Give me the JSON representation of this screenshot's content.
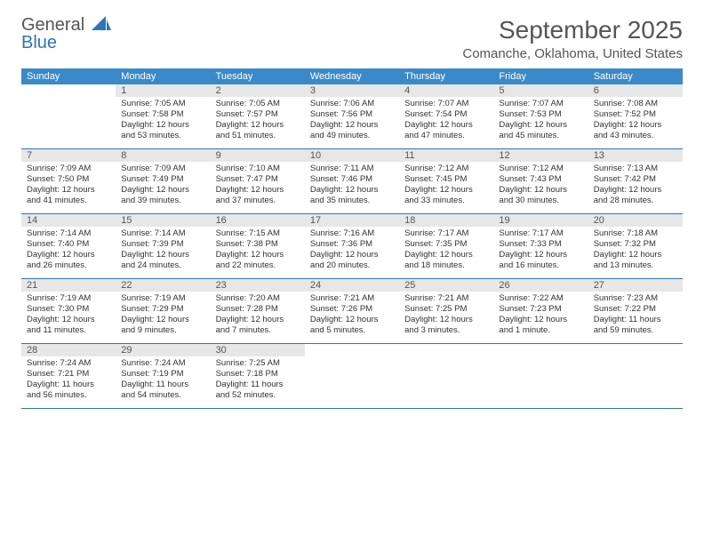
{
  "logo": {
    "word1": "General",
    "word2": "Blue"
  },
  "header": {
    "month_title": "September 2025",
    "location": "Comanche, Oklahoma, United States"
  },
  "colors": {
    "header_bg": "#3a8ac9",
    "header_fg": "#ffffff",
    "daynum_bg": "#e7e7e7",
    "row_border": "#2e75b6",
    "logo_blue": "#2e75b6"
  },
  "weekdays": [
    "Sunday",
    "Monday",
    "Tuesday",
    "Wednesday",
    "Thursday",
    "Friday",
    "Saturday"
  ],
  "weeks": [
    [
      null,
      {
        "n": "1",
        "sunrise": "Sunrise: 7:05 AM",
        "sunset": "Sunset: 7:58 PM",
        "daylight": "Daylight: 12 hours and 53 minutes."
      },
      {
        "n": "2",
        "sunrise": "Sunrise: 7:05 AM",
        "sunset": "Sunset: 7:57 PM",
        "daylight": "Daylight: 12 hours and 51 minutes."
      },
      {
        "n": "3",
        "sunrise": "Sunrise: 7:06 AM",
        "sunset": "Sunset: 7:56 PM",
        "daylight": "Daylight: 12 hours and 49 minutes."
      },
      {
        "n": "4",
        "sunrise": "Sunrise: 7:07 AM",
        "sunset": "Sunset: 7:54 PM",
        "daylight": "Daylight: 12 hours and 47 minutes."
      },
      {
        "n": "5",
        "sunrise": "Sunrise: 7:07 AM",
        "sunset": "Sunset: 7:53 PM",
        "daylight": "Daylight: 12 hours and 45 minutes."
      },
      {
        "n": "6",
        "sunrise": "Sunrise: 7:08 AM",
        "sunset": "Sunset: 7:52 PM",
        "daylight": "Daylight: 12 hours and 43 minutes."
      }
    ],
    [
      {
        "n": "7",
        "sunrise": "Sunrise: 7:09 AM",
        "sunset": "Sunset: 7:50 PM",
        "daylight": "Daylight: 12 hours and 41 minutes."
      },
      {
        "n": "8",
        "sunrise": "Sunrise: 7:09 AM",
        "sunset": "Sunset: 7:49 PM",
        "daylight": "Daylight: 12 hours and 39 minutes."
      },
      {
        "n": "9",
        "sunrise": "Sunrise: 7:10 AM",
        "sunset": "Sunset: 7:47 PM",
        "daylight": "Daylight: 12 hours and 37 minutes."
      },
      {
        "n": "10",
        "sunrise": "Sunrise: 7:11 AM",
        "sunset": "Sunset: 7:46 PM",
        "daylight": "Daylight: 12 hours and 35 minutes."
      },
      {
        "n": "11",
        "sunrise": "Sunrise: 7:12 AM",
        "sunset": "Sunset: 7:45 PM",
        "daylight": "Daylight: 12 hours and 33 minutes."
      },
      {
        "n": "12",
        "sunrise": "Sunrise: 7:12 AM",
        "sunset": "Sunset: 7:43 PM",
        "daylight": "Daylight: 12 hours and 30 minutes."
      },
      {
        "n": "13",
        "sunrise": "Sunrise: 7:13 AM",
        "sunset": "Sunset: 7:42 PM",
        "daylight": "Daylight: 12 hours and 28 minutes."
      }
    ],
    [
      {
        "n": "14",
        "sunrise": "Sunrise: 7:14 AM",
        "sunset": "Sunset: 7:40 PM",
        "daylight": "Daylight: 12 hours and 26 minutes."
      },
      {
        "n": "15",
        "sunrise": "Sunrise: 7:14 AM",
        "sunset": "Sunset: 7:39 PM",
        "daylight": "Daylight: 12 hours and 24 minutes."
      },
      {
        "n": "16",
        "sunrise": "Sunrise: 7:15 AM",
        "sunset": "Sunset: 7:38 PM",
        "daylight": "Daylight: 12 hours and 22 minutes."
      },
      {
        "n": "17",
        "sunrise": "Sunrise: 7:16 AM",
        "sunset": "Sunset: 7:36 PM",
        "daylight": "Daylight: 12 hours and 20 minutes."
      },
      {
        "n": "18",
        "sunrise": "Sunrise: 7:17 AM",
        "sunset": "Sunset: 7:35 PM",
        "daylight": "Daylight: 12 hours and 18 minutes."
      },
      {
        "n": "19",
        "sunrise": "Sunrise: 7:17 AM",
        "sunset": "Sunset: 7:33 PM",
        "daylight": "Daylight: 12 hours and 16 minutes."
      },
      {
        "n": "20",
        "sunrise": "Sunrise: 7:18 AM",
        "sunset": "Sunset: 7:32 PM",
        "daylight": "Daylight: 12 hours and 13 minutes."
      }
    ],
    [
      {
        "n": "21",
        "sunrise": "Sunrise: 7:19 AM",
        "sunset": "Sunset: 7:30 PM",
        "daylight": "Daylight: 12 hours and 11 minutes."
      },
      {
        "n": "22",
        "sunrise": "Sunrise: 7:19 AM",
        "sunset": "Sunset: 7:29 PM",
        "daylight": "Daylight: 12 hours and 9 minutes."
      },
      {
        "n": "23",
        "sunrise": "Sunrise: 7:20 AM",
        "sunset": "Sunset: 7:28 PM",
        "daylight": "Daylight: 12 hours and 7 minutes."
      },
      {
        "n": "24",
        "sunrise": "Sunrise: 7:21 AM",
        "sunset": "Sunset: 7:26 PM",
        "daylight": "Daylight: 12 hours and 5 minutes."
      },
      {
        "n": "25",
        "sunrise": "Sunrise: 7:21 AM",
        "sunset": "Sunset: 7:25 PM",
        "daylight": "Daylight: 12 hours and 3 minutes."
      },
      {
        "n": "26",
        "sunrise": "Sunrise: 7:22 AM",
        "sunset": "Sunset: 7:23 PM",
        "daylight": "Daylight: 12 hours and 1 minute."
      },
      {
        "n": "27",
        "sunrise": "Sunrise: 7:23 AM",
        "sunset": "Sunset: 7:22 PM",
        "daylight": "Daylight: 11 hours and 59 minutes."
      }
    ],
    [
      {
        "n": "28",
        "sunrise": "Sunrise: 7:24 AM",
        "sunset": "Sunset: 7:21 PM",
        "daylight": "Daylight: 11 hours and 56 minutes."
      },
      {
        "n": "29",
        "sunrise": "Sunrise: 7:24 AM",
        "sunset": "Sunset: 7:19 PM",
        "daylight": "Daylight: 11 hours and 54 minutes."
      },
      {
        "n": "30",
        "sunrise": "Sunrise: 7:25 AM",
        "sunset": "Sunset: 7:18 PM",
        "daylight": "Daylight: 11 hours and 52 minutes."
      },
      null,
      null,
      null,
      null
    ]
  ]
}
